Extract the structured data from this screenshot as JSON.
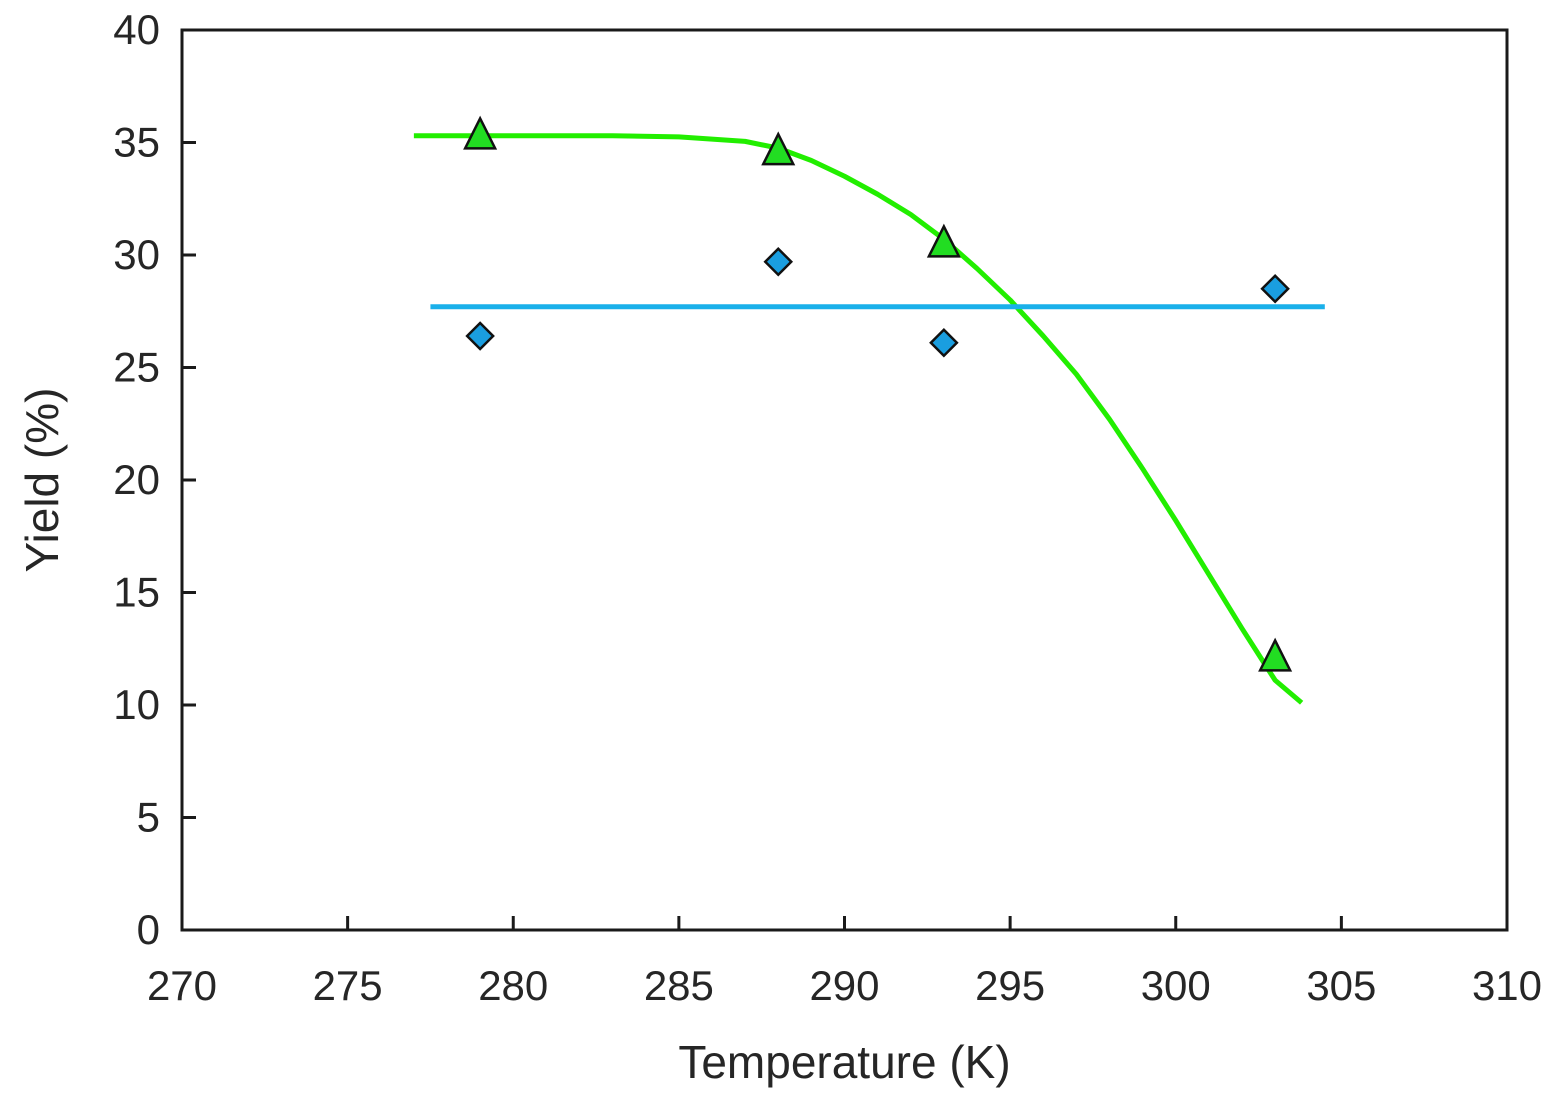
{
  "chart_data": {
    "type": "scatter",
    "title": "",
    "xlabel": "Temperature (K)",
    "ylabel": "Yield (%)",
    "xlim": [
      270,
      310
    ],
    "ylim": [
      0,
      40
    ],
    "xticks": [
      270,
      275,
      280,
      285,
      290,
      295,
      300,
      305,
      310
    ],
    "yticks": [
      0,
      5,
      10,
      15,
      20,
      25,
      30,
      35,
      40
    ],
    "grid": false,
    "legend": "none",
    "series": [
      {
        "marker": "triangle",
        "color": "#22dd22",
        "x": [
          279,
          288,
          293,
          303
        ],
        "y": [
          35.3,
          34.6,
          30.5,
          12.1
        ]
      },
      {
        "marker": "diamond",
        "color": "#1a9ee0",
        "x": [
          279,
          288,
          293,
          303
        ],
        "y": [
          26.4,
          29.7,
          26.1,
          28.5
        ]
      }
    ],
    "curves": [
      {
        "kind": "fit",
        "color": "#22ee00",
        "x": [
          277,
          280,
          283,
          285,
          287,
          288,
          289,
          290,
          291,
          292,
          293,
          294,
          295,
          296,
          297,
          298,
          299,
          300,
          301,
          302,
          303,
          303.8
        ],
        "y": [
          35.3,
          35.3,
          35.3,
          35.25,
          35.05,
          34.75,
          34.2,
          33.5,
          32.7,
          31.8,
          30.7,
          29.4,
          28.0,
          26.4,
          24.7,
          22.7,
          20.5,
          18.2,
          15.8,
          13.4,
          11.1,
          10.1
        ]
      },
      {
        "kind": "fit",
        "color": "#1ab0ea",
        "x": [
          277.5,
          304.5
        ],
        "y": [
          27.7,
          27.7
        ]
      }
    ]
  }
}
